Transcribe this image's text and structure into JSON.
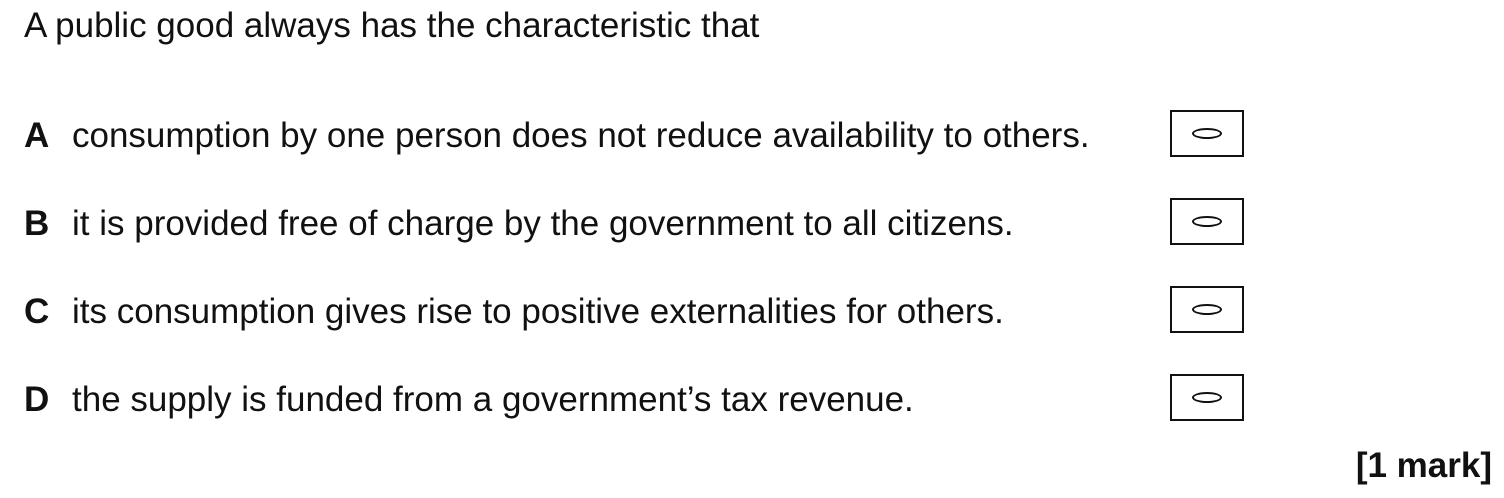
{
  "question": {
    "stem": "A public good always has the characteristic that"
  },
  "options": [
    {
      "letter": "A",
      "text": "consumption by one person does not reduce availability to others."
    },
    {
      "letter": "B",
      "text": "it is provided free of charge by the government to all citizens."
    },
    {
      "letter": "C",
      "text": "its consumption gives rise to positive externalities for others."
    },
    {
      "letter": "D",
      "text": "the supply is funded from a government’s tax revenue."
    }
  ],
  "marks": "[1 mark]"
}
